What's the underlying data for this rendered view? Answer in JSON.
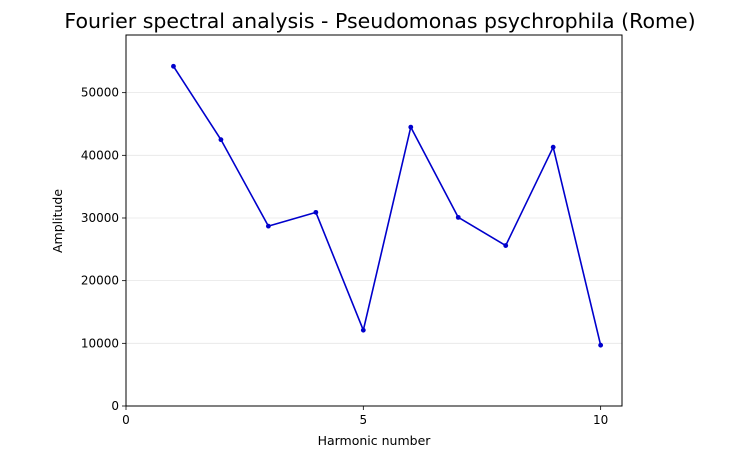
{
  "chart_data": {
    "type": "line",
    "title": "Fourier spectral analysis - Pseudomonas psychrophila (Rome)",
    "xlabel": "Harmonic number",
    "ylabel": "Amplitude",
    "xlim": [
      0,
      10.45
    ],
    "ylim": [
      0,
      59200
    ],
    "xticks": [
      0,
      5,
      10
    ],
    "yticks": [
      0,
      10000,
      20000,
      30000,
      40000,
      50000
    ],
    "grid": "y",
    "color": "#0000cc",
    "series": [
      {
        "x": [
          1,
          2,
          3,
          4,
          5,
          6,
          7,
          8,
          9,
          10
        ],
        "values": [
          54200,
          42500,
          28700,
          30900,
          12100,
          44500,
          30100,
          25600,
          41300,
          9700
        ]
      }
    ]
  }
}
